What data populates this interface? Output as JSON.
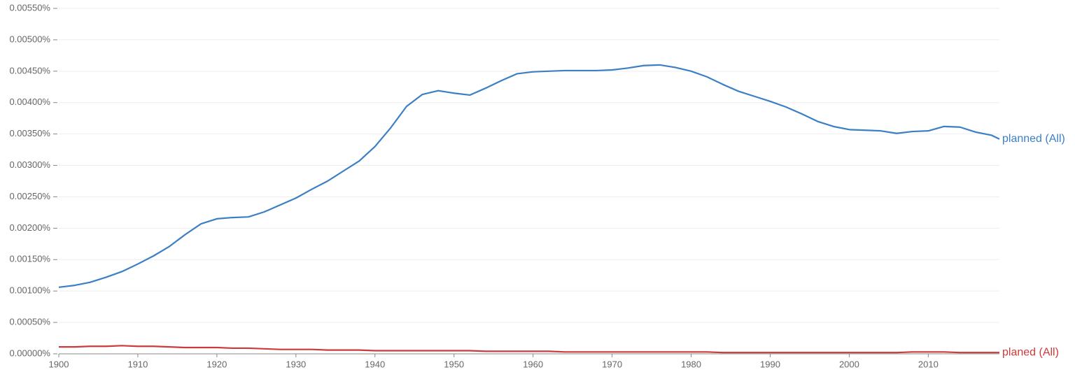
{
  "chart_data": {
    "type": "line",
    "x": [
      1900,
      1902,
      1904,
      1906,
      1908,
      1910,
      1912,
      1914,
      1916,
      1918,
      1920,
      1922,
      1924,
      1926,
      1928,
      1930,
      1932,
      1934,
      1936,
      1938,
      1940,
      1942,
      1944,
      1946,
      1948,
      1950,
      1952,
      1954,
      1956,
      1958,
      1960,
      1962,
      1964,
      1966,
      1968,
      1970,
      1972,
      1974,
      1976,
      1978,
      1980,
      1982,
      1984,
      1986,
      1988,
      1990,
      1992,
      1994,
      1996,
      1998,
      2000,
      2002,
      2004,
      2006,
      2008,
      2010,
      2012,
      2014,
      2016,
      2018,
      2019
    ],
    "series": [
      {
        "name": "planned (All)",
        "color": "#3b7fc4",
        "values": [
          0.00106,
          0.00109,
          0.00114,
          0.00122,
          0.00131,
          0.00143,
          0.00156,
          0.00171,
          0.0019,
          0.00207,
          0.00215,
          0.00217,
          0.00218,
          0.00226,
          0.00237,
          0.00248,
          0.00262,
          0.00275,
          0.00291,
          0.00307,
          0.0033,
          0.0036,
          0.00394,
          0.00413,
          0.00419,
          0.00415,
          0.00412,
          0.00423,
          0.00435,
          0.00446,
          0.00449,
          0.0045,
          0.00451,
          0.00451,
          0.00451,
          0.00452,
          0.00455,
          0.00459,
          0.0046,
          0.00456,
          0.0045,
          0.00441,
          0.00429,
          0.00418,
          0.0041,
          0.00402,
          0.00393,
          0.00382,
          0.0037,
          0.00362,
          0.00357,
          0.00356,
          0.00355,
          0.00351,
          0.00354,
          0.00355,
          0.00362,
          0.00361,
          0.00353,
          0.00348,
          0.00342
        ]
      },
      {
        "name": "planed (All)",
        "color": "#cc3b3b",
        "values": [
          0.00011,
          0.00011,
          0.00012,
          0.00012,
          0.00013,
          0.00012,
          0.00012,
          0.00011,
          0.0001,
          0.0001,
          0.0001,
          9e-05,
          9e-05,
          8e-05,
          7e-05,
          7e-05,
          7e-05,
          6e-05,
          6e-05,
          6e-05,
          5e-05,
          5e-05,
          5e-05,
          5e-05,
          5e-05,
          5e-05,
          5e-05,
          4e-05,
          4e-05,
          4e-05,
          4e-05,
          4e-05,
          3e-05,
          3e-05,
          3e-05,
          3e-05,
          3e-05,
          3e-05,
          3e-05,
          3e-05,
          3e-05,
          3e-05,
          2e-05,
          2e-05,
          2e-05,
          2e-05,
          2e-05,
          2e-05,
          2e-05,
          2e-05,
          2e-05,
          2e-05,
          2e-05,
          2e-05,
          3e-05,
          3e-05,
          3e-05,
          2e-05,
          2e-05,
          2e-05,
          2e-05
        ]
      }
    ],
    "xlim": [
      1900,
      2019
    ],
    "xticks": [
      1900,
      1910,
      1920,
      1930,
      1940,
      1950,
      1960,
      1970,
      1980,
      1990,
      2000,
      2010
    ],
    "ylim": [
      0,
      0.0055
    ],
    "yticks": [
      {
        "value": 0,
        "label": "0.00000%"
      },
      {
        "value": 0.0005,
        "label": "0.00050%"
      },
      {
        "value": 0.001,
        "label": "0.00100%"
      },
      {
        "value": 0.0015,
        "label": "0.00150%"
      },
      {
        "value": 0.002,
        "label": "0.00200%"
      },
      {
        "value": 0.0025,
        "label": "0.00250%"
      },
      {
        "value": 0.003,
        "label": "0.00300%"
      },
      {
        "value": 0.0035,
        "label": "0.00350%"
      },
      {
        "value": 0.004,
        "label": "0.00400%"
      },
      {
        "value": 0.0045,
        "label": "0.00450%"
      },
      {
        "value": 0.005,
        "label": "0.00500%"
      },
      {
        "value": 0.0055,
        "label": "0.00550%"
      }
    ],
    "grid": true
  }
}
